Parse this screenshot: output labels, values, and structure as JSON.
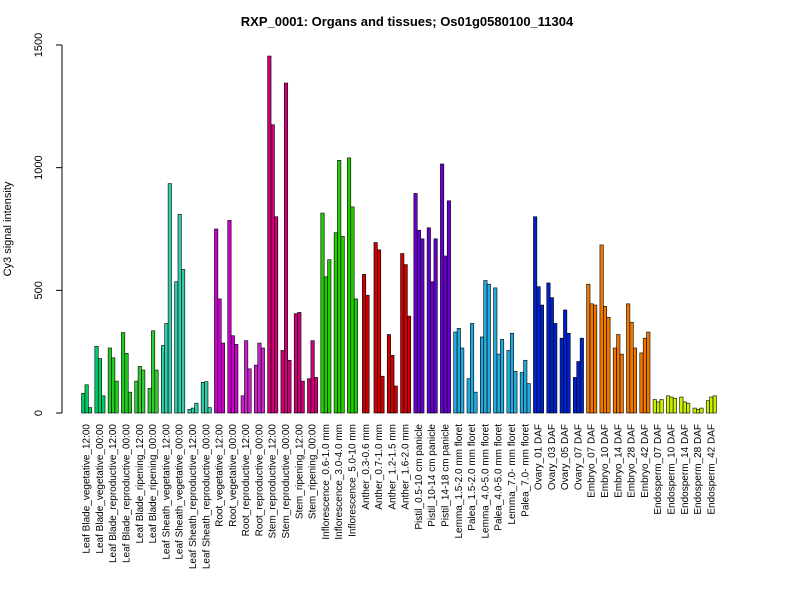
{
  "chart_data": {
    "type": "bar",
    "title": "RXP_0001: Organs and tissues; Os01g0580100_11304",
    "xlabel": "",
    "ylabel": "Cy3 signal intensity",
    "ylim": [
      0,
      1500
    ],
    "yticks": [
      0,
      500,
      1000,
      1500
    ],
    "grid": false,
    "legend": "none",
    "groups": [
      {
        "label": "Leaf Blade_vegetative_12:00",
        "color": "#00CC66",
        "values": [
          80,
          115,
          22
        ]
      },
      {
        "label": "Leaf Blade_vegetative_00:00",
        "color": "#00CC66",
        "values": [
          272,
          222,
          70
        ]
      },
      {
        "label": "Leaf Blade_reproductive_12:00",
        "color": "#22CC22",
        "values": [
          265,
          225,
          130
        ]
      },
      {
        "label": "Leaf Blade_reproductive_00:00",
        "color": "#22CC22",
        "values": [
          328,
          243,
          85
        ]
      },
      {
        "label": "Leaf Blade_ripening_12:00",
        "color": "#33CC33",
        "values": [
          130,
          190,
          175
        ]
      },
      {
        "label": "Leaf Blade_ripening_00:00",
        "color": "#33CC33",
        "values": [
          100,
          335,
          175
        ]
      },
      {
        "label": "Leaf Sheath_vegetative_12:00",
        "color": "#33CCAA",
        "values": [
          275,
          365,
          935
        ]
      },
      {
        "label": "Leaf Sheath_vegetative_00:00",
        "color": "#33CCAA",
        "values": [
          535,
          810,
          585
        ]
      },
      {
        "label": "Leaf Sheath_reproductive_12:00",
        "color": "#33CCAA",
        "values": [
          15,
          20,
          40
        ]
      },
      {
        "label": "Leaf Sheath_reproductive_00:00",
        "color": "#33CCAA",
        "values": [
          125,
          128,
          22
        ]
      },
      {
        "label": "Root_vegetative_12:00",
        "color": "#CC00CC",
        "values": [
          750,
          465,
          285
        ]
      },
      {
        "label": "Root_vegetative_00:00",
        "color": "#CC00CC",
        "values": [
          785,
          315,
          280
        ]
      },
      {
        "label": "Root_reproductive_12:00",
        "color": "#CC22CC",
        "values": [
          70,
          295,
          180
        ]
      },
      {
        "label": "Root_reproductive_00:00",
        "color": "#CC22CC",
        "values": [
          195,
          285,
          265
        ]
      },
      {
        "label": "Stem_reproductive_12:00",
        "color": "#CC0077",
        "values": [
          1455,
          1175,
          800
        ]
      },
      {
        "label": "Stem_reproductive_00:00",
        "color": "#CC0077",
        "values": [
          255,
          1345,
          215
        ]
      },
      {
        "label": "Stem_ripening_12:00",
        "color": "#CC0077",
        "values": [
          405,
          410,
          130
        ]
      },
      {
        "label": "Stem_ripening_00:00",
        "color": "#CC0077",
        "values": [
          140,
          295,
          145
        ]
      },
      {
        "label": "Inflorescence_0.6-1.0 mm",
        "color": "#22CC00",
        "values": [
          815,
          555,
          625
        ]
      },
      {
        "label": "Inflorescence_3.0-4.0 mm",
        "color": "#22CC00",
        "values": [
          735,
          1030,
          720
        ]
      },
      {
        "label": "Inflorescence_5.0-10 mm",
        "color": "#22CC00",
        "values": [
          1040,
          840,
          465
        ]
      },
      {
        "label": "Anther_0.3-0.6 mm",
        "color": "#CC0000",
        "values": [
          565,
          480
        ]
      },
      {
        "label": "Anther_0.7-1.0 mm",
        "color": "#CC0000",
        "values": [
          695,
          665,
          150
        ]
      },
      {
        "label": "Anther_1.2-1.5 mm",
        "color": "#CC0000",
        "values": [
          320,
          235,
          110
        ]
      },
      {
        "label": "Anther_1.6-2.0 mm",
        "color": "#CC0000",
        "values": [
          650,
          605,
          395
        ]
      },
      {
        "label": "Pistil_0.5-10 cm panicle",
        "color": "#6600CC",
        "values": [
          895,
          745,
          710
        ]
      },
      {
        "label": "Pistil_10-14 cm panicle",
        "color": "#6600CC",
        "values": [
          755,
          535,
          710
        ]
      },
      {
        "label": "Pistil_14-18 cm panicle",
        "color": "#6600CC",
        "values": [
          1015,
          640,
          865
        ]
      },
      {
        "label": "Lemma_1.5-2.0 mm floret",
        "color": "#22AADD",
        "values": [
          330,
          345,
          265
        ]
      },
      {
        "label": "Palea_1.5-2.0 mm floret",
        "color": "#22AADD",
        "values": [
          140,
          365,
          85
        ]
      },
      {
        "label": "Lemma_4.0-5.0 mm floret",
        "color": "#22AADD",
        "values": [
          310,
          540,
          525
        ]
      },
      {
        "label": "Palea_4.0-5.0 mm floret",
        "color": "#22AADD",
        "values": [
          510,
          240,
          300
        ]
      },
      {
        "label": "Lemma_7.0- mm floret",
        "color": "#22AADD",
        "values": [
          255,
          325,
          170
        ]
      },
      {
        "label": "Palea_7.0- mm floret",
        "color": "#22AADD",
        "values": [
          165,
          215,
          120
        ]
      },
      {
        "label": "Ovary_01 DAF",
        "color": "#0022CC",
        "values": [
          800,
          515,
          440
        ]
      },
      {
        "label": "Ovary_03 DAF",
        "color": "#0022CC",
        "values": [
          530,
          470,
          365
        ]
      },
      {
        "label": "Ovary_05 DAF",
        "color": "#0022CC",
        "values": [
          305,
          420,
          325
        ]
      },
      {
        "label": "Ovary_07 DAF",
        "color": "#0022CC",
        "values": [
          145,
          210,
          305
        ]
      },
      {
        "label": "Embryo_07 DAF",
        "color": "#EE7700",
        "values": [
          525,
          445,
          440
        ]
      },
      {
        "label": "Embryo_10 DAF",
        "color": "#EE7700",
        "values": [
          685,
          435,
          390
        ]
      },
      {
        "label": "Embryo_14 DAF",
        "color": "#EE7700",
        "values": [
          265,
          320,
          240
        ]
      },
      {
        "label": "Embryo_28 DAF",
        "color": "#EE7700",
        "values": [
          445,
          370,
          265
        ]
      },
      {
        "label": "Embryo_42 DAF",
        "color": "#EE7700",
        "values": [
          245,
          305,
          330
        ]
      },
      {
        "label": "Endosperm_07 DAF",
        "color": "#CCEE00",
        "values": [
          55,
          45,
          55
        ]
      },
      {
        "label": "Endosperm_10 DAF",
        "color": "#CCEE00",
        "values": [
          70,
          65,
          60
        ]
      },
      {
        "label": "Endosperm_14 DAF",
        "color": "#CCEE00",
        "values": [
          65,
          45,
          40
        ]
      },
      {
        "label": "Endosperm_28 DAF",
        "color": "#CCEE00",
        "values": [
          20,
          15,
          20
        ]
      },
      {
        "label": "Endosperm_42 DAF",
        "color": "#CCEE00",
        "values": [
          50,
          65,
          70
        ]
      }
    ]
  }
}
